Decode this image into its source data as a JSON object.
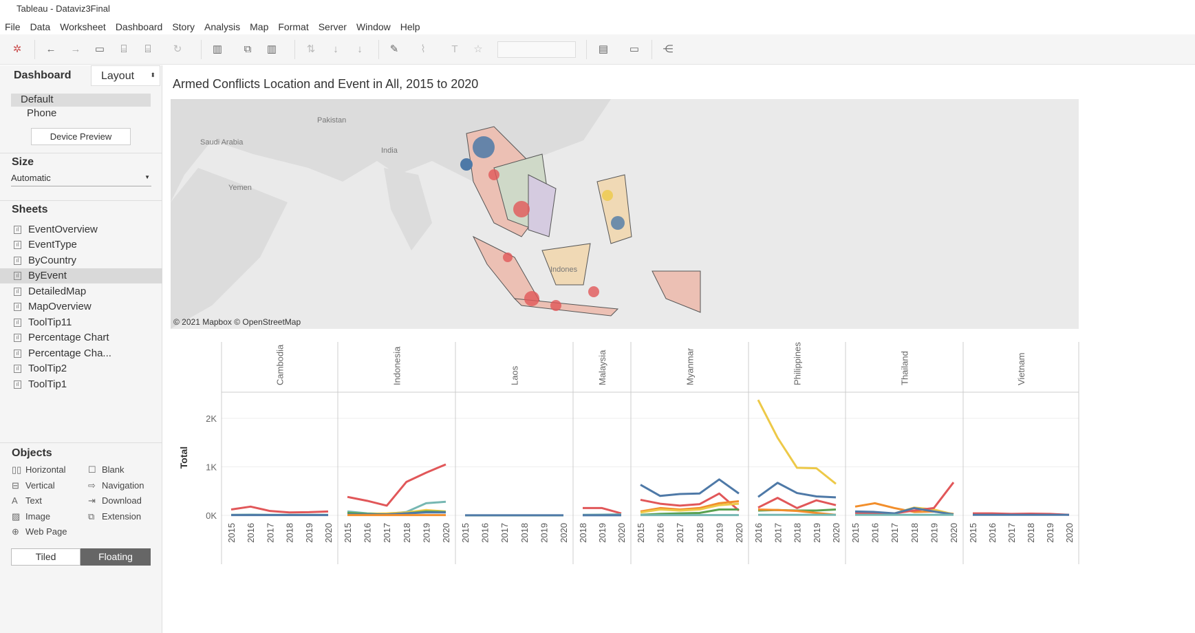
{
  "window": {
    "title": "Tableau - Dataviz3Final"
  },
  "menu": [
    "File",
    "Data",
    "Worksheet",
    "Dashboard",
    "Story",
    "Analysis",
    "Map",
    "Format",
    "Server",
    "Window",
    "Help"
  ],
  "left": {
    "tabs": {
      "dashboard": "Dashboard",
      "layout": "Layout"
    },
    "devices": {
      "default": "Default",
      "phone": "Phone",
      "preview_button": "Device Preview"
    },
    "size": {
      "heading": "Size",
      "value": "Automatic"
    },
    "sheets": {
      "heading": "Sheets",
      "items": [
        "EventOverview",
        "EventType",
        "ByCountry",
        "ByEvent",
        "DetailedMap",
        "MapOverview",
        "ToolTip11",
        "Percentage Chart",
        "Percentage Cha...",
        "ToolTip2",
        "ToolTip1"
      ],
      "selected": "ByEvent"
    },
    "objects": {
      "heading": "Objects",
      "items": [
        "Horizontal",
        "Blank",
        "Vertical",
        "Navigation",
        "Text",
        "Download",
        "Image",
        "Extension",
        "Web Page"
      ]
    },
    "mode": {
      "tiled": "Tiled",
      "floating": "Floating"
    }
  },
  "dashboard": {
    "title": "Armed Conflicts Location and Event in All, 2015 to 2020"
  },
  "map": {
    "labels": {
      "pakistan": "Pakistan",
      "saudi": "Saudi Arabia",
      "india": "India",
      "yemen": "Yemen",
      "indonesia": "Indones"
    },
    "attribution": "© 2021 Mapbox © OpenStreetMap"
  },
  "colors": {
    "blue": "#4e79a7",
    "orange": "#f28e2b",
    "red": "#e15759",
    "teal": "#76b7b2",
    "green": "#59a14f",
    "yellow": "#edc948"
  },
  "chart_data": {
    "type": "line",
    "ylabel": "Total",
    "ylim": [
      0,
      2500
    ],
    "yticks": [
      {
        "v": 0,
        "label": "0K"
      },
      {
        "v": 1000,
        "label": "1K"
      },
      {
        "v": 2000,
        "label": "2K"
      }
    ],
    "panels": [
      {
        "country": "Cambodia",
        "years": [
          "2015",
          "2016",
          "2017",
          "2018",
          "2019",
          "2020"
        ],
        "series": {
          "red": [
            120,
            180,
            90,
            60,
            65,
            80
          ],
          "teal": [
            10,
            15,
            10,
            10,
            10,
            10
          ],
          "blue": [
            5,
            5,
            5,
            5,
            5,
            5
          ]
        }
      },
      {
        "country": "Indonesia",
        "years": [
          "2015",
          "2016",
          "2017",
          "2018",
          "2019",
          "2020"
        ],
        "series": {
          "red": [
            380,
            300,
            200,
            690,
            880,
            1050
          ],
          "teal": [
            80,
            40,
            30,
            70,
            250,
            280
          ],
          "yellow": [
            40,
            30,
            40,
            60,
            110,
            80
          ],
          "green": [
            50,
            30,
            20,
            40,
            80,
            70
          ],
          "blue": [
            20,
            20,
            20,
            40,
            60,
            60
          ],
          "orange": [
            5,
            5,
            5,
            5,
            5,
            5
          ]
        }
      },
      {
        "country": "Laos",
        "years": [
          "2015",
          "2016",
          "2017",
          "2018",
          "2019",
          "2020"
        ],
        "series": {
          "red": [
            0,
            0,
            0,
            0,
            0,
            0
          ],
          "green": [
            0,
            0,
            0,
            0,
            0,
            0
          ],
          "blue": [
            2,
            2,
            2,
            2,
            2,
            2
          ]
        }
      },
      {
        "country": "Malaysia",
        "years": [
          "2018",
          "2019",
          "2020"
        ],
        "series": {
          "red": [
            150,
            150,
            40
          ],
          "teal": [
            10,
            15,
            20
          ],
          "blue": [
            2,
            2,
            2
          ]
        }
      },
      {
        "country": "Myanmar",
        "years": [
          "2015",
          "2016",
          "2017",
          "2018",
          "2019",
          "2020"
        ],
        "series": {
          "blue": [
            630,
            400,
            440,
            450,
            740,
            450
          ],
          "red": [
            320,
            240,
            200,
            230,
            450,
            100
          ],
          "orange": [
            80,
            150,
            120,
            150,
            250,
            290
          ],
          "yellow": [
            60,
            120,
            100,
            120,
            210,
            240
          ],
          "green": [
            10,
            30,
            40,
            50,
            120,
            120
          ],
          "teal": [
            5,
            5,
            5,
            5,
            5,
            5
          ]
        }
      },
      {
        "country": "Philippines",
        "years": [
          "2016",
          "2017",
          "2018",
          "2019",
          "2020"
        ],
        "series": {
          "yellow": [
            2380,
            1600,
            980,
            970,
            650
          ],
          "blue": [
            380,
            670,
            460,
            390,
            370
          ],
          "red": [
            160,
            360,
            150,
            310,
            210
          ],
          "green": [
            100,
            110,
            100,
            100,
            120
          ],
          "orange": [
            120,
            110,
            90,
            50,
            10
          ],
          "teal": [
            10,
            10,
            10,
            10,
            10
          ]
        }
      },
      {
        "country": "Thailand",
        "years": [
          "2015",
          "2016",
          "2017",
          "2018",
          "2019",
          "2020"
        ],
        "series": {
          "orange": [
            180,
            250,
            150,
            70,
            80,
            30
          ],
          "yellow": [
            50,
            40,
            40,
            160,
            120,
            20
          ],
          "red": [
            50,
            40,
            40,
            100,
            150,
            680
          ],
          "blue": [
            80,
            70,
            40,
            150,
            80,
            20
          ],
          "teal": [
            10,
            10,
            10,
            10,
            10,
            10
          ]
        }
      },
      {
        "country": "Vietnam",
        "years": [
          "2015",
          "2016",
          "2017",
          "2018",
          "2019",
          "2020"
        ],
        "series": {
          "red": [
            40,
            40,
            30,
            35,
            30,
            10
          ],
          "blue": [
            10,
            10,
            10,
            10,
            10,
            10
          ]
        }
      }
    ]
  }
}
